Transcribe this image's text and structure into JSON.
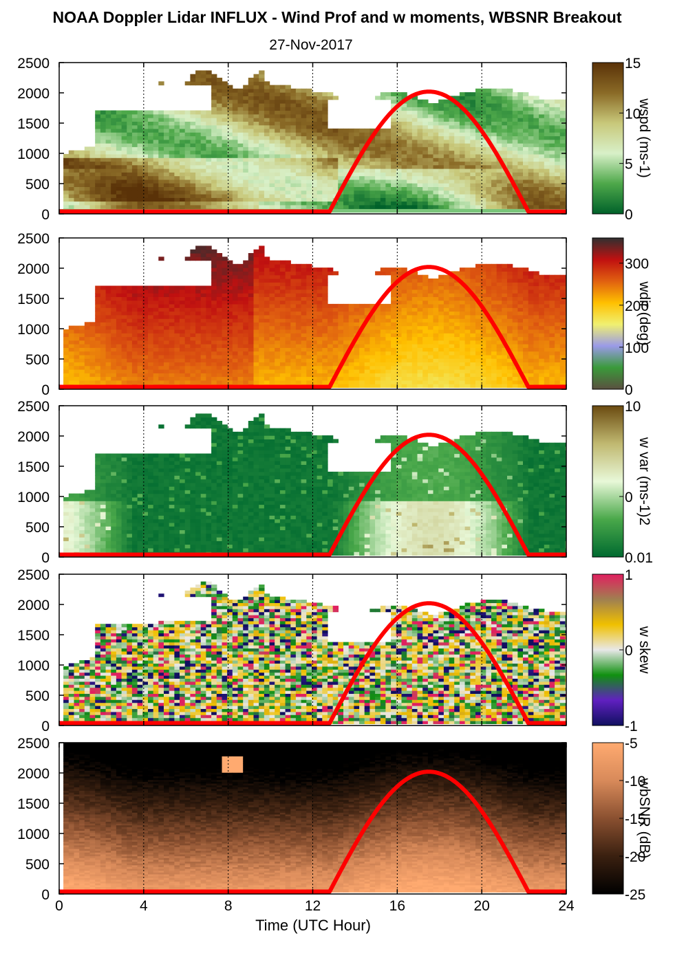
{
  "title": "NOAA Doppler Lidar INFLUX - Wind Prof and w moments, WBSNR Breakout",
  "subtitle": "27-Nov-2017",
  "xlabel": "Time (UTC Hour)",
  "chart_data": {
    "type": "heatmap",
    "x_range": [
      0,
      24
    ],
    "x_ticks": [
      0,
      4,
      8,
      12,
      16,
      20,
      24
    ],
    "x_tick_labels": [
      "0",
      "4",
      "8",
      "12",
      "16",
      "20",
      "24"
    ],
    "y_range": [
      0,
      2500
    ],
    "y_ticks": [
      0,
      500,
      1000,
      1500,
      2000,
      2500
    ],
    "y_tick_labels": [
      "0",
      "500",
      "1000",
      "1500",
      "2000",
      "2500"
    ],
    "vertical_gridlines_at": [
      4,
      8,
      12,
      16,
      20,
      24
    ],
    "overlay_curve": {
      "color": "#ff0000",
      "description_points": [
        [
          0,
          40
        ],
        [
          12.8,
          40
        ],
        [
          14,
          850
        ],
        [
          15.5,
          1700
        ],
        [
          17.5,
          2020
        ],
        [
          19.5,
          1700
        ],
        [
          21,
          850
        ],
        [
          22.2,
          40
        ],
        [
          24,
          40
        ]
      ]
    },
    "panels": [
      {
        "colorbar_label": "wspd (ms-1)",
        "colorbar_ticks": [
          "15",
          "10",
          "5",
          "0"
        ],
        "colorbar_range": [
          0,
          15
        ],
        "colors": [
          "#00612a",
          "#4ea84a",
          "#d8f0c8",
          "#c8c87a",
          "#8a6a26",
          "#5a3208"
        ]
      },
      {
        "colorbar_label": "wdir (deg)",
        "colorbar_ticks": [
          "300",
          "200",
          "100",
          "0"
        ],
        "colorbar_range": [
          0,
          360
        ],
        "colors": [
          "#5a5040",
          "#3a9a3a",
          "#9a9ae8",
          "#f0f070",
          "#ffc000",
          "#e06010",
          "#c01010",
          "#303030"
        ]
      },
      {
        "colorbar_label": "w var (ms-1)2",
        "colorbar_ticks": [
          "10",
          "0",
          "0.01"
        ],
        "colorbar_range": [
          0.01,
          10
        ],
        "colors": [
          "#006a30",
          "#4aa84a",
          "#e8f8d8",
          "#c0b870",
          "#6a4a10"
        ]
      },
      {
        "colorbar_label": "w skew",
        "colorbar_ticks": [
          "1",
          "0",
          "-1"
        ],
        "colorbar_range": [
          -1,
          1
        ],
        "colors": [
          "#101060",
          "#6020c0",
          "#109010",
          "#e8e8e8",
          "#f0c000",
          "#a08050",
          "#e02060"
        ]
      },
      {
        "colorbar_label": "wbSNR (dB)",
        "colorbar_ticks": [
          "-5",
          "-10",
          "-15",
          "-20",
          "-25"
        ],
        "colorbar_range": [
          -25,
          -5
        ],
        "colors": [
          "#000000",
          "#3a2010",
          "#8a5030",
          "#d88a5a",
          "#ffaa70"
        ]
      }
    ]
  }
}
